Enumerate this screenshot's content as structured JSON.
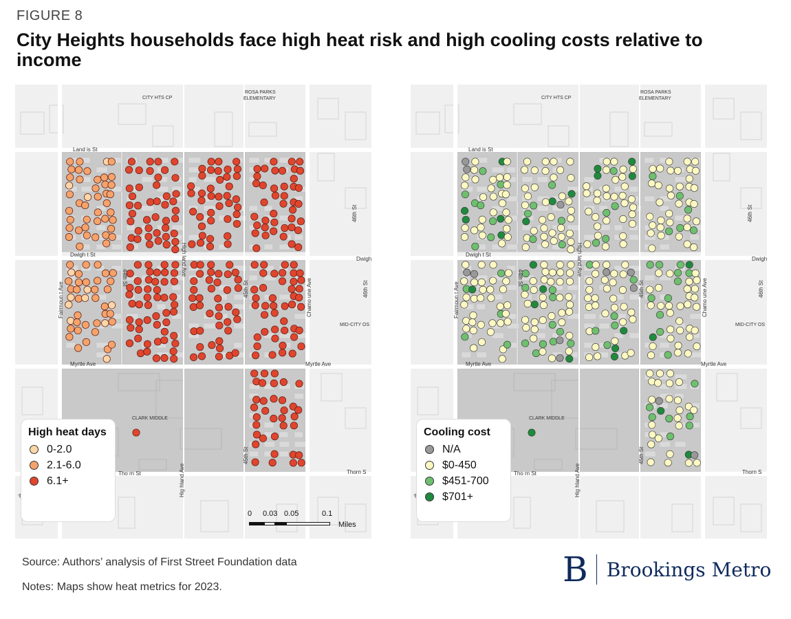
{
  "figure_label": "FIGURE 8",
  "title": "City Heights households face high heat risk and high cooling costs relative to income",
  "source": "Source: Authors’ analysis of First Street Foundation data",
  "notes": "Notes: Maps show heat metrics for 2023.",
  "brand": {
    "mark": "B",
    "name": "Brookings Metro"
  },
  "map_labels": {
    "city_hts_cp": "CITY HTS CP",
    "rosa_parks": [
      "ROSA PARKS",
      "ELEMENTARY"
    ],
    "clark_middle": "CLARK MIDDLE",
    "mid_city_os": "MID-CITY OS",
    "landis_st": "Land is St",
    "dwight_st": "Dwigh t St",
    "dwight_st_edge": "Dwigh",
    "myrtle_ave": "Myrtle  Ave",
    "myrtle_ave_east": "Myrtle Ave",
    "thorn_st": "Tho rn St",
    "thorn_st_edge": "Thorn S",
    "fairmount_ave": "Fairmoun t Ave",
    "st_44th": "44th St",
    "highland_ave": "High land Ave",
    "highland_ave_south": "Hig hland Ave",
    "st_45th": "45th St",
    "chamoune_ave": "Chamo une Ave",
    "st_46th": "46th St",
    "st_46th_b": "46th St",
    "edge_me": "Me"
  },
  "scalebar": {
    "ticks": [
      "0",
      "0.03",
      "0.05",
      "0.1"
    ],
    "unit": "Miles"
  },
  "colors": {
    "low": "#fcd6a8",
    "mid": "#f5a36b",
    "high": "#e0452e",
    "na": "#999999",
    "cost_low": "#fdf8c2",
    "cost_mid": "#6ec06e",
    "cost_high": "#1f8a3d",
    "ground": "#f0f0f0",
    "block": "#c9c9c9",
    "building": "#dadada"
  },
  "legend_heat": {
    "title": "High heat days",
    "items": [
      {
        "label": "0-2.0",
        "color": "#fcd6a8"
      },
      {
        "label": "2.1-6.0",
        "color": "#f5a36b"
      },
      {
        "label": "6.1+",
        "color": "#e0452e"
      }
    ]
  },
  "legend_cost": {
    "title": "Cooling cost",
    "items": [
      {
        "label": "N/A",
        "color": "#999999"
      },
      {
        "label": "$0-450",
        "color": "#fdf8c2"
      },
      {
        "label": "$451-700",
        "color": "#6ec06e"
      },
      {
        "label": "$701+",
        "color": "#1f8a3d"
      }
    ]
  }
}
